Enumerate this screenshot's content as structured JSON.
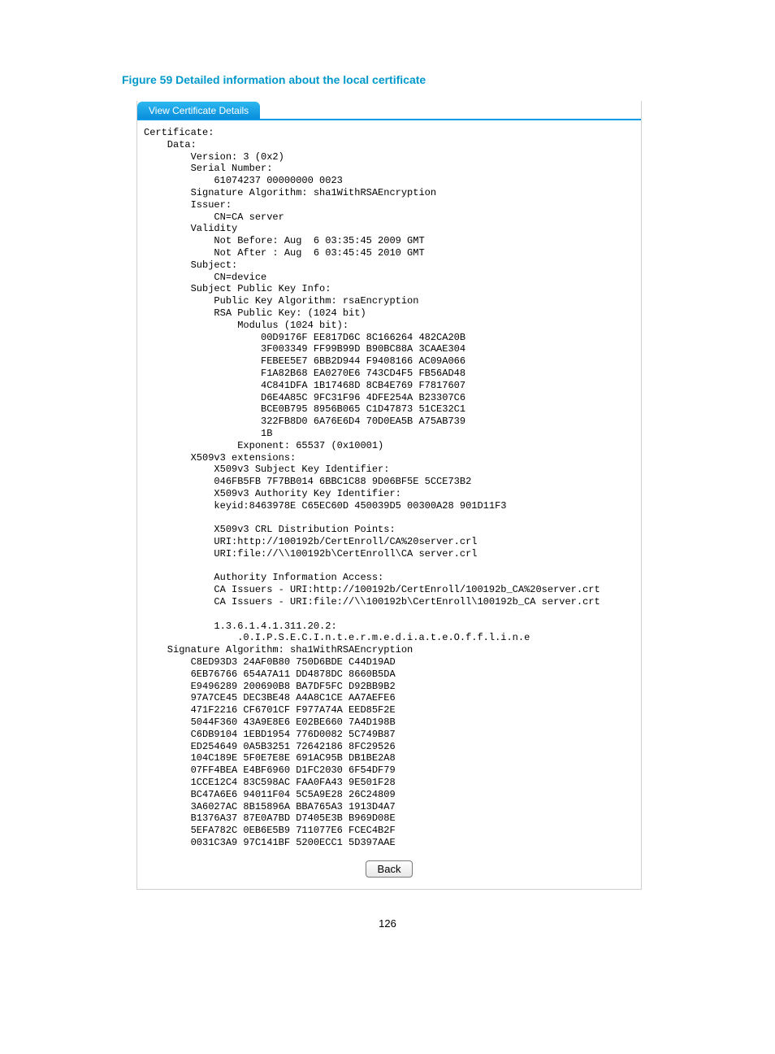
{
  "figure_title": "Figure 59 Detailed information about the local certificate",
  "tab_label": "View Certificate Details",
  "colors": {
    "accent": "#0099cc",
    "tab_gradient_top": "#2cb8f0",
    "tab_gradient_bottom": "#0a8edc",
    "tab_border": "#0099e6",
    "panel_border": "#d0d0d0",
    "text": "#000000",
    "tab_text": "#ffffff",
    "button_border": "#7a7a7a"
  },
  "certificate": {
    "version": "3 (0x2)",
    "serial_number": "61074237 00000000 0023",
    "signature_algorithm": "sha1WithRSAEncryption",
    "issuer_cn": "CA server",
    "validity": {
      "not_before": "Aug  6 03:35:45 2009 GMT",
      "not_after": "Aug  6 03:45:45 2010 GMT"
    },
    "subject_cn": "device",
    "public_key_algorithm": "rsaEncryption",
    "rsa_key_bits": "1024",
    "modulus_lines": [
      "00D9176F EE817D6C 8C166264 482CA20B",
      "3F003349 FF99B99D B90BC88A 3CAAE304",
      "FEBEE5E7 6BB2D944 F9408166 AC09A066",
      "F1A82B68 EA0270E6 743CD4F5 FB56AD48",
      "4C841DFA 1B17468D 8CB4E769 F7817607",
      "D6E4A85C 9FC31F96 4DFE254A B23307C6",
      "BCE0B795 8956B065 C1D47873 51CE32C1",
      "322FB8D0 6A76E6D4 70D0EA5B A75AB739",
      "1B"
    ],
    "exponent": "65537 (0x10001)",
    "x509v3": {
      "subject_key_identifier": "046FB5FB 7F7BB014 6BBC1C88 9D06BF5E 5CCE73B2",
      "authority_key_identifier": "keyid:8463978E C65EC60D 450039D5 00300A28 901D11F3",
      "crl_points": [
        "URI:http://100192b/CertEnroll/CA%20server.crl",
        "URI:file://\\\\100192b\\CertEnroll\\CA server.crl"
      ],
      "authority_info_access": [
        "CA Issuers - URI:http://100192b/CertEnroll/100192b_CA%20server.crt",
        "CA Issuers - URI:file://\\\\100192b\\CertEnroll\\100192b_CA server.crt"
      ],
      "oid": "1.3.6.1.4.1.311.20.2:",
      "oid_value": ".0.I.P.S.E.C.I.n.t.e.r.m.e.d.i.a.t.e.O.f.f.l.i.n.e"
    },
    "signature_lines": [
      "C8ED93D3 24AF0B80 750D6BDE C44D19AD",
      "6EB76766 654A7A11 DD4878DC 8660B5DA",
      "E9496289 200690B8 BA7DF5FC D92BB9B2",
      "97A7CE45 DEC3BE48 A4A8C1CE AA7AEFE6",
      "471F2216 CF6701CF F977A74A EED85F2E",
      "5044F360 43A9E8E6 E02BE660 7A4D198B",
      "C6DB9104 1EBD1954 776D0082 5C749B87",
      "ED254649 0A5B3251 72642186 8FC29526",
      "104C189E 5F0E7E8E 691AC95B DB1BE2A8",
      "07FF4BEA E4BF6960 D1FC2030 6F54DF79",
      "1CCE12C4 83C598AC FAA0FA43 9E501F28",
      "BC47A6E6 94011F04 5C5A9E28 26C24809",
      "3A6027AC 8B15896A BBA765A3 1913D4A7",
      "B1376A37 87E0A7BD D7405E3B B969D08E",
      "5EFA782C 0EB6E5B9 711077E6 FCEC4B2F",
      "0031C3A9 97C141BF 5200ECC1 5D397AAE"
    ]
  },
  "back_button_label": "Back",
  "page_number": "126"
}
